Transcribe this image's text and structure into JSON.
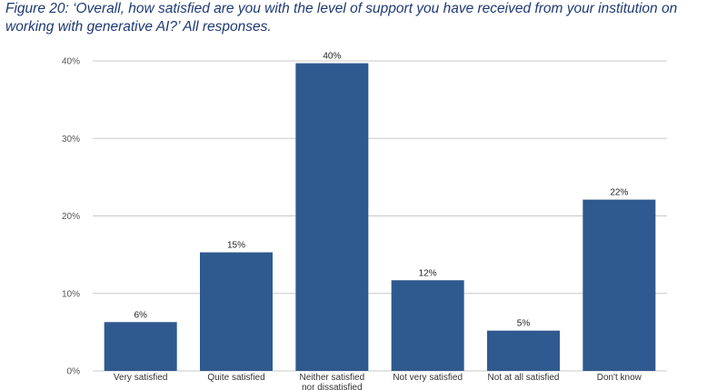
{
  "chart_data": {
    "type": "bar",
    "title": "Figure 20: ‘Overall, how satisfied are you with the level of support you have received from your institution on working with generative AI?’ All responses.",
    "categories": [
      "Very satisfied",
      "Quite satisfied",
      "Neither satisfied nor dissatisfied",
      "Not very satisfied",
      "Not at all satisfied",
      "Don't know"
    ],
    "values": [
      6.3,
      15.3,
      39.7,
      11.7,
      5.2,
      22.1
    ],
    "data_labels": [
      "6%",
      "15%",
      "40%",
      "12%",
      "5%",
      "22%"
    ],
    "yticks": [
      "0%",
      "10%",
      "20%",
      "30%",
      "40%"
    ],
    "ylim": [
      0,
      40
    ],
    "grid": true,
    "legend": "none",
    "bar_color": "#2f5a8f",
    "grid_color": "#c8c8c8"
  }
}
